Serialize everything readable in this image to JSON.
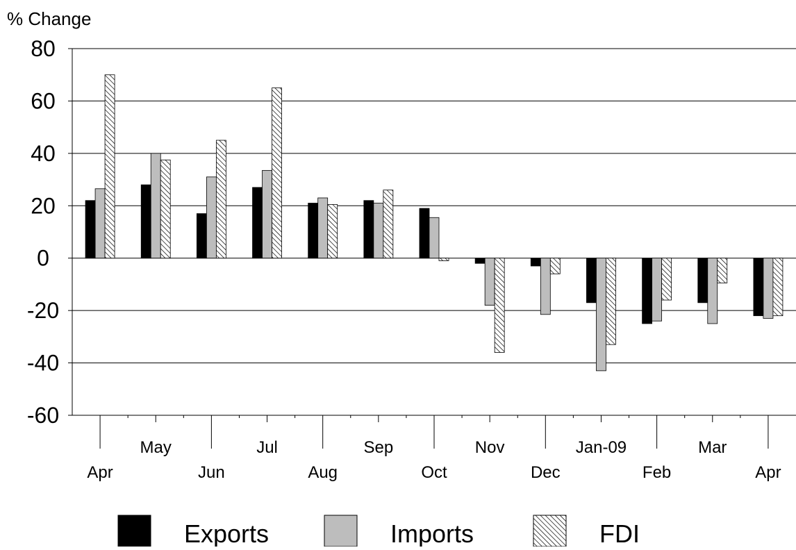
{
  "chart_data": {
    "type": "bar",
    "title": "",
    "xlabel": "",
    "ylabel": "% Change",
    "ylim": [
      -60,
      80
    ],
    "yticks": [
      80,
      60,
      40,
      20,
      0,
      -20,
      -40,
      -60
    ],
    "grid": "horizontal",
    "legend_position": "bottom",
    "categories": [
      "Apr",
      "May",
      "Jun",
      "Jul",
      "Aug",
      "Sep",
      "Oct",
      "Nov",
      "Dec",
      "Jan-09",
      "Feb",
      "Mar",
      "Apr"
    ],
    "series": [
      {
        "name": "Exports",
        "color": "#000000",
        "pattern": "solid",
        "values": [
          22,
          28,
          17,
          27,
          21,
          22,
          19,
          -2,
          -3,
          -17,
          -25,
          -17,
          -22
        ]
      },
      {
        "name": "Imports",
        "color": "#bdbdbd",
        "pattern": "solid",
        "values": [
          26.5,
          40,
          31,
          33.5,
          23,
          21,
          15.5,
          -18,
          -21.5,
          -43,
          -24,
          -25,
          -23
        ]
      },
      {
        "name": "FDI",
        "color": "#ffffff",
        "pattern": "hatch",
        "values": [
          70,
          37.5,
          45,
          65,
          20.5,
          26,
          -1,
          -36,
          -6,
          -33,
          -16,
          -9.5,
          -22
        ]
      }
    ]
  }
}
